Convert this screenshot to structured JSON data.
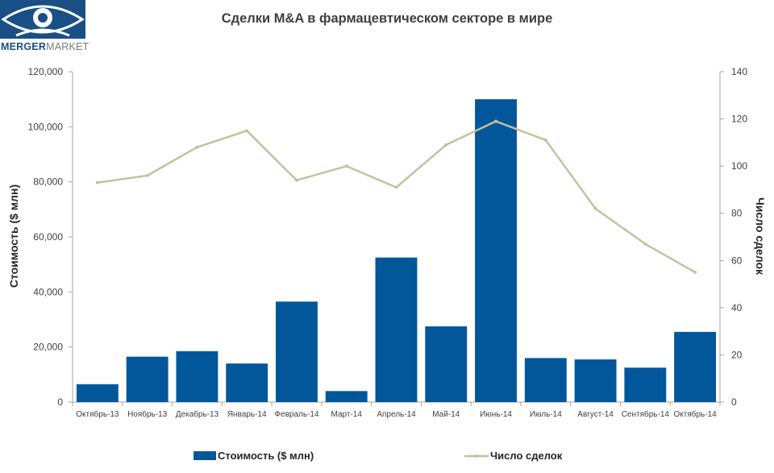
{
  "logo": {
    "text_part1": "MERGER",
    "text_part2": "MARKET"
  },
  "chart_data": {
    "type": "bar",
    "title": "Сделки M&A в фармацевтическом секторе в мире",
    "categories": [
      "Октябрь-13",
      "Ноябрь-13",
      "Декабрь-13",
      "Январь-14",
      "Февраль-14",
      "Март-14",
      "Апрель-14",
      "Май-14",
      "Июнь-14",
      "Июль-14",
      "Август-14",
      "Сентябрь-14",
      "Октябрь-14"
    ],
    "series": [
      {
        "name": "Стоимость ($ млн)",
        "type": "bar",
        "axis": "left",
        "color": "#02579b",
        "values": [
          6500,
          16500,
          18500,
          14000,
          36500,
          4000,
          52500,
          27500,
          110000,
          16000,
          15500,
          12500,
          25500
        ]
      },
      {
        "name": "Число сделок",
        "type": "line",
        "axis": "right",
        "color": "#c8bf9e",
        "values": [
          93,
          96,
          108,
          115,
          94,
          100,
          91,
          109,
          119,
          111,
          82,
          67,
          55
        ]
      }
    ],
    "ylabel": "Стоимость  ($ млн)",
    "y2label": "Число сделок",
    "ylim": [
      0,
      120000
    ],
    "yticks": [
      "0",
      "20,000",
      "40,000",
      "60,000",
      "80,000",
      "100,000",
      "120,000"
    ],
    "y2lim": [
      0,
      140
    ],
    "y2ticks": [
      "0",
      "20",
      "40",
      "60",
      "80",
      "100",
      "120",
      "140"
    ],
    "grid": false,
    "legend": "bottom"
  }
}
